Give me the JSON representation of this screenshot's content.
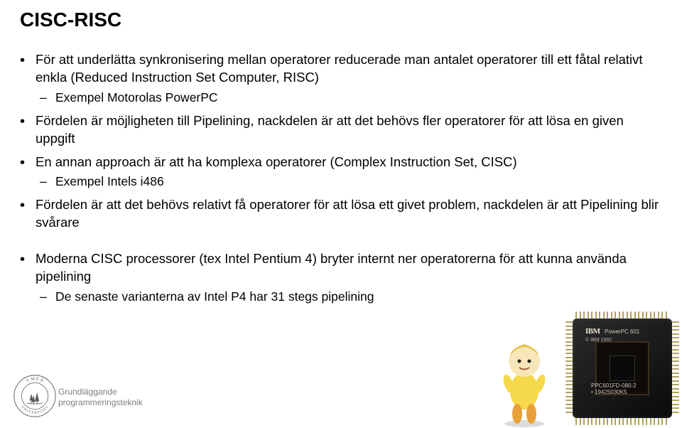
{
  "title": "CISC-RISC",
  "bullets": [
    {
      "text": "För att underlätta synkronisering mellan operatorer reducerade man antalet operatorer till ett fåtal relativt enkla (Reduced Instruction Set Computer, RISC)",
      "sub": [
        "Exempel Motorolas PowerPC"
      ]
    },
    {
      "text": "Fördelen är möjligheten till Pipelining, nackdelen är att det behövs fler operatorer för att lösa en given uppgift",
      "sub": []
    },
    {
      "text": "En annan approach är att ha komplexa operatorer (Complex Instruction Set, CISC)",
      "sub": [
        "Exempel Intels i486"
      ]
    },
    {
      "text": "Fördelen är att det behövs relativt få operatorer för att lösa ett givet problem, nackdelen är att Pipelining blir svårare",
      "sub": []
    }
  ],
  "bullets2": [
    {
      "text": "Moderna CISC processorer (tex Intel Pentium 4) bryter internt ner operatorerna för att kunna använda pipelining",
      "sub": [
        "De senaste varianterna av Intel P4 har 31 stegs pipelining"
      ]
    }
  ],
  "footer": {
    "line1": "Grundläggande",
    "line2": "programmeringsteknik"
  },
  "seal": {
    "text_top": "U M E Å",
    "text_bottom": "U N I V E R S I T E T",
    "ring_color": "#5a5a5a",
    "tree_color": "#5a5a5a",
    "bg": "#ffffff"
  },
  "chip": {
    "brand": "IBM",
    "model": "PowerPC 601",
    "year": "© IBM 1992",
    "serial": "PPC601FD-080-2",
    "lot": "• 19425030K5",
    "body_color": "#1a1a1a",
    "pin_color": "#b0a060"
  },
  "colors": {
    "text": "#000000",
    "footer": "#7f7f7f",
    "bg": "#ffffff"
  },
  "fonts": {
    "title_size": 28,
    "body_size": 18.5,
    "sub_size": 17.5,
    "footer_size": 12
  }
}
